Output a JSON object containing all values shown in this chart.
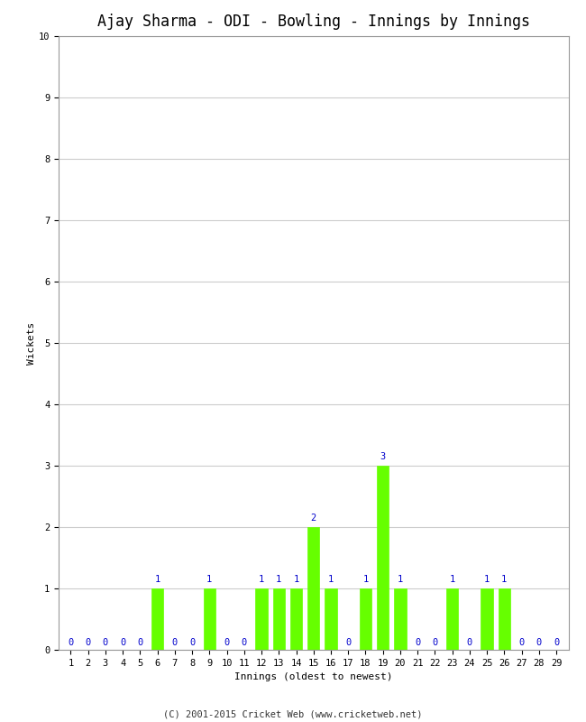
{
  "title": "Ajay Sharma - ODI - Bowling - Innings by Innings",
  "xlabel": "Innings (oldest to newest)",
  "ylabel": "Wickets",
  "bar_color": "#66ff00",
  "bar_edge_color": "#66ff00",
  "annotation_color": "#0000cc",
  "background_color": "#ffffff",
  "grid_color": "#cccccc",
  "ylim": [
    0,
    10
  ],
  "yticks": [
    0,
    1,
    2,
    3,
    4,
    5,
    6,
    7,
    8,
    9,
    10
  ],
  "innings": [
    1,
    2,
    3,
    4,
    5,
    6,
    7,
    8,
    9,
    10,
    11,
    12,
    13,
    14,
    15,
    16,
    17,
    18,
    19,
    20,
    21,
    22,
    23,
    24,
    25,
    26,
    27,
    28,
    29
  ],
  "wickets": [
    0,
    0,
    0,
    0,
    0,
    1,
    0,
    0,
    1,
    0,
    0,
    1,
    1,
    1,
    2,
    1,
    0,
    1,
    3,
    1,
    0,
    0,
    1,
    0,
    1,
    1,
    0,
    0,
    0
  ],
  "footer": "(C) 2001-2015 Cricket Web (www.cricketweb.net)",
  "title_fontsize": 12,
  "axis_label_fontsize": 8,
  "tick_fontsize": 7.5,
  "annotation_fontsize": 7.5,
  "footer_fontsize": 7.5
}
